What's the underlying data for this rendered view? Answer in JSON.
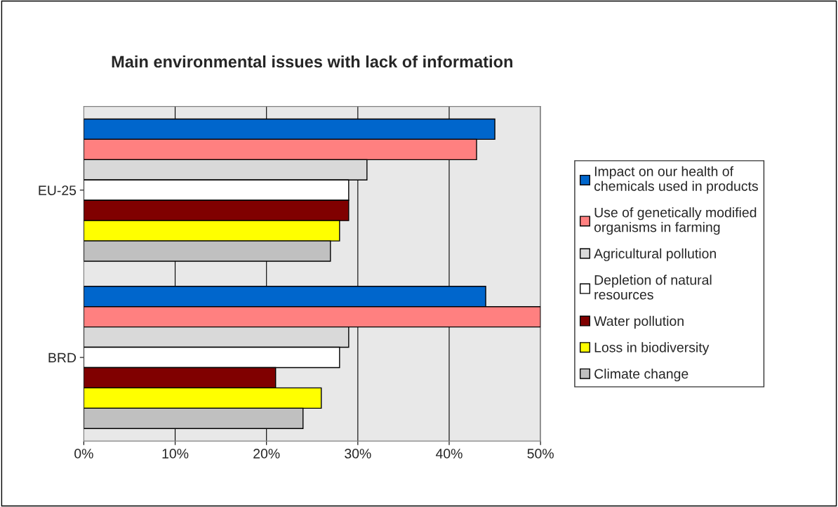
{
  "chart_data": {
    "type": "bar",
    "orientation": "horizontal",
    "title": "Main environmental issues with lack of information",
    "categories": [
      "EU-25",
      "BRD"
    ],
    "series": [
      {
        "name": "Impact on our health of chemicals used in products",
        "color": "#0066cc",
        "values": [
          45,
          44
        ]
      },
      {
        "name": "Use of genetically modified organisms in farming",
        "color": "#ff8080",
        "values": [
          43,
          50
        ]
      },
      {
        "name": "Agricultural pollution",
        "color": "#d9d9d9",
        "values": [
          31,
          29
        ]
      },
      {
        "name": "Depletion of natural resources",
        "color": "#ffffff",
        "values": [
          29,
          28
        ]
      },
      {
        "name": "Water pollution",
        "color": "#800000",
        "values": [
          29,
          21
        ]
      },
      {
        "name": "Loss in biodiversity",
        "color": "#ffff00",
        "values": [
          28,
          26
        ]
      },
      {
        "name": "Climate change",
        "color": "#c0c0c0",
        "values": [
          27,
          24
        ]
      }
    ],
    "xlim": [
      0,
      50
    ],
    "xticks": [
      {
        "value": 0,
        "label": "0%"
      },
      {
        "value": 10,
        "label": "10%"
      },
      {
        "value": 20,
        "label": "20%"
      },
      {
        "value": 30,
        "label": "30%"
      },
      {
        "value": 40,
        "label": "40%"
      },
      {
        "value": 50,
        "label": "50%"
      }
    ],
    "grid": "x",
    "legend": "right"
  }
}
